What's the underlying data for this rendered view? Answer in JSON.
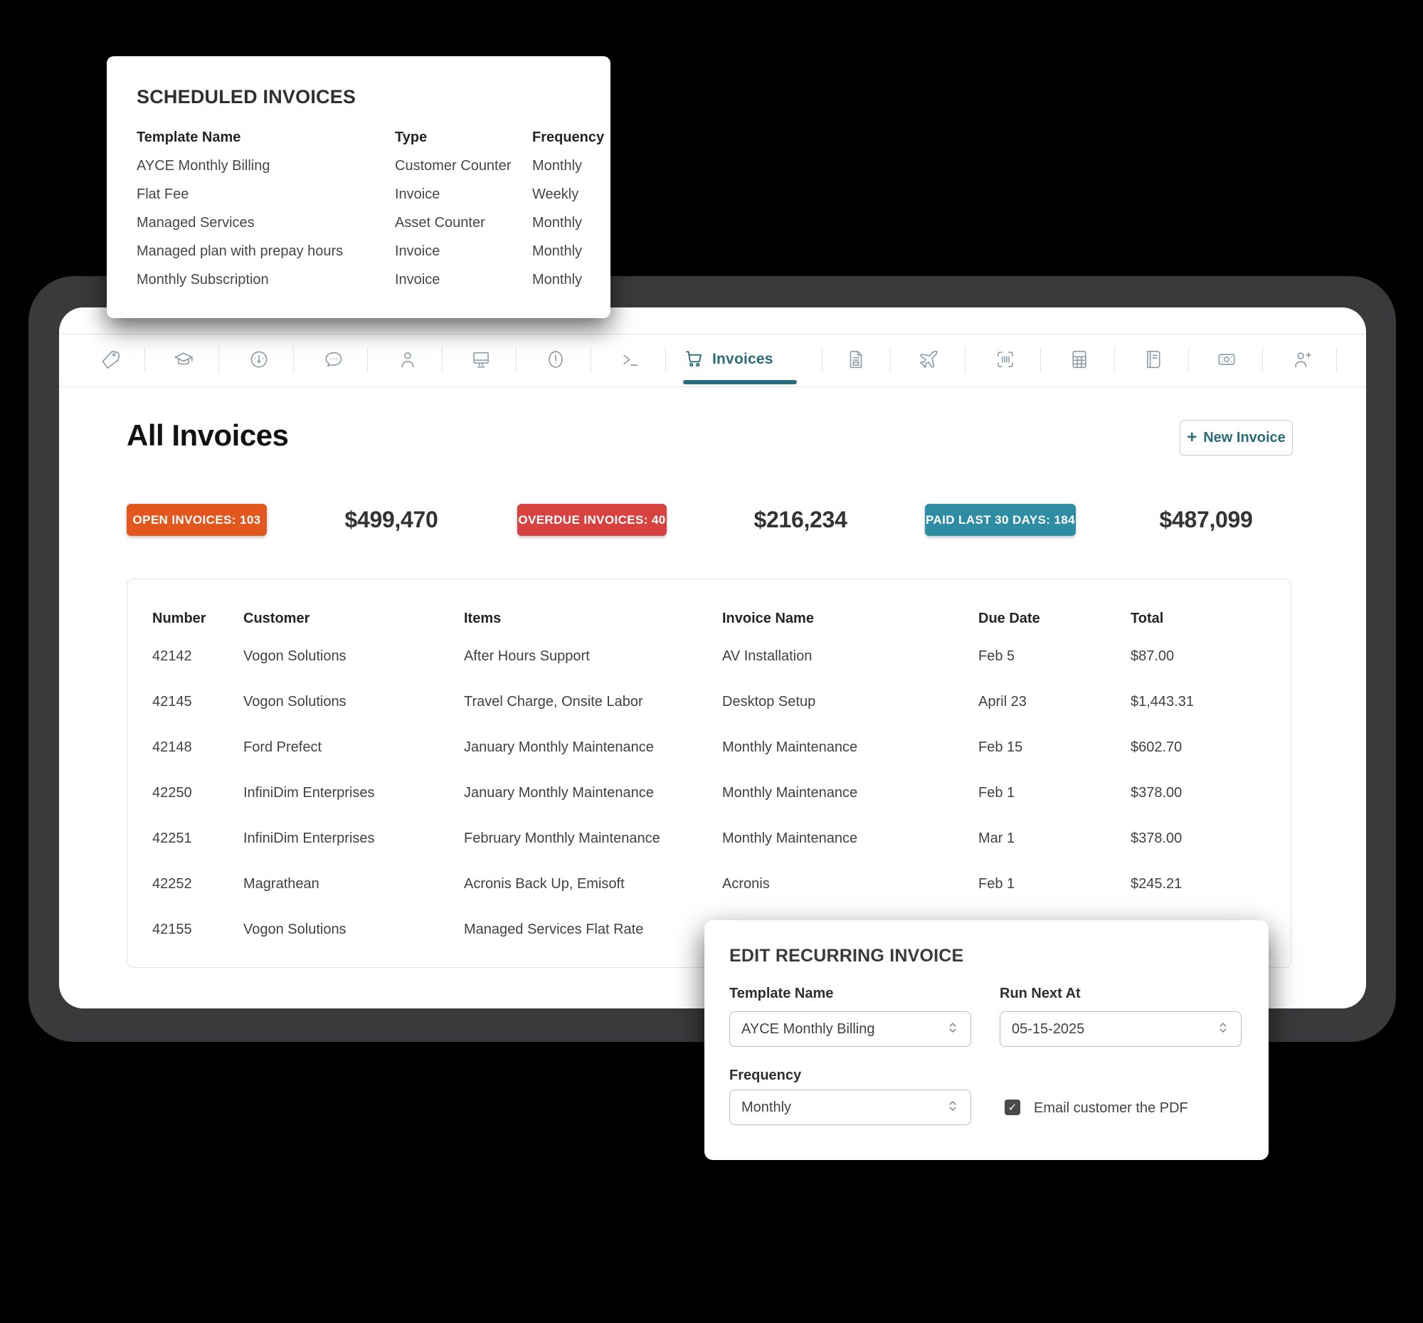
{
  "colors": {
    "accent_teal": "#2a6b7c",
    "badge_open": "#e2571e",
    "badge_overdue": "#d74240",
    "badge_paid": "#2e8da2",
    "frame_gray": "#3a3a3c",
    "icon_gray": "#8c9ba8"
  },
  "scheduled_card": {
    "title": "SCHEDULED INVOICES",
    "columns": [
      "Template Name",
      "Type",
      "Frequency"
    ],
    "rows": [
      {
        "template": "AYCE Monthly Billing",
        "type": "Customer Counter",
        "frequency": "Monthly"
      },
      {
        "template": "Flat Fee",
        "type": "Invoice",
        "frequency": "Weekly"
      },
      {
        "template": "Managed Services",
        "type": "Asset Counter",
        "frequency": "Monthly"
      },
      {
        "template": "Managed plan with prepay hours",
        "type": "Invoice",
        "frequency": "Monthly"
      },
      {
        "template": "Monthly Subscription",
        "type": "Invoice",
        "frequency": "Monthly"
      }
    ]
  },
  "toolbar": {
    "active_tab": "Invoices",
    "icons_left": [
      "tag",
      "graduation-cap",
      "gauge",
      "chat",
      "user",
      "monitor",
      "alert-circle",
      "terminal"
    ],
    "icons_right": [
      "file-invoice",
      "plane",
      "barcode",
      "calculator",
      "book",
      "cash",
      "user-add"
    ]
  },
  "header": {
    "title": "All Invoices",
    "plus": "+",
    "new_invoice_label": "New Invoice"
  },
  "stats": [
    {
      "badge": "OPEN INVOICES: 103",
      "amount": "$499,470"
    },
    {
      "badge": "OVERDUE INVOICES: 40",
      "amount": "$216,234"
    },
    {
      "badge": "PAID LAST 30 DAYS: 184",
      "amount": "$487,099"
    }
  ],
  "invoice_table": {
    "columns": [
      "Number",
      "Customer",
      "Items",
      "Invoice Name",
      "Due Date",
      "Total"
    ],
    "rows": [
      {
        "number": "42142",
        "customer": "Vogon Solutions",
        "items": "After Hours Support",
        "name": "AV Installation",
        "due": "Feb 5",
        "total": "$87.00"
      },
      {
        "number": "42145",
        "customer": "Vogon Solutions",
        "items": "Travel Charge, Onsite Labor",
        "name": "Desktop Setup",
        "due": "April 23",
        "total": "$1,443.31"
      },
      {
        "number": "42148",
        "customer": "Ford Prefect",
        "items": "January Monthly Maintenance",
        "name": "Monthly Maintenance",
        "due": "Feb 15",
        "total": "$602.70"
      },
      {
        "number": "42250",
        "customer": "InfiniDim Enterprises",
        "items": "January Monthly Maintenance",
        "name": "Monthly Maintenance",
        "due": "Feb 1",
        "total": "$378.00"
      },
      {
        "number": "42251",
        "customer": "InfiniDim Enterprises",
        "items": "February Monthly Maintenance",
        "name": "Monthly Maintenance",
        "due": "Mar 1",
        "total": "$378.00"
      },
      {
        "number": "42252",
        "customer": "Magrathean",
        "items": "Acronis Back Up, Emisoft",
        "name": "Acronis",
        "due": "Feb 1",
        "total": "$245.21"
      },
      {
        "number": "42155",
        "customer": "Vogon Solutions",
        "items": "Managed Services Flat Rate",
        "name": "",
        "due": "",
        "total": ""
      }
    ]
  },
  "modal": {
    "title": "EDIT RECURRING INVOICE",
    "template_name_label": "Template Name",
    "template_name_value": "AYCE Monthly Billing",
    "run_next_label": "Run Next At",
    "run_next_value": "05-15-2025",
    "frequency_label": "Frequency",
    "frequency_value": "Monthly",
    "email_checkbox_label": "Email customer the PDF",
    "email_checked": "true",
    "checkmark": "✓"
  }
}
